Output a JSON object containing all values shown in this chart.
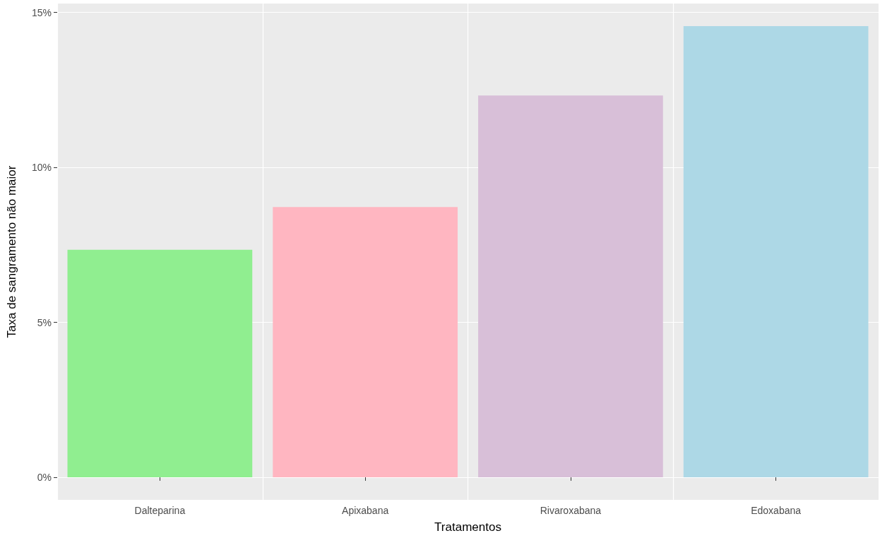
{
  "chart_data": {
    "type": "bar",
    "xlabel": "Tratamentos",
    "ylabel": "Taxa de sangramento não maior",
    "categories": [
      "Dalteparina",
      "Apixabana",
      "Rivaroxabana",
      "Edoxabana"
    ],
    "values": [
      7.34,
      8.72,
      12.32,
      14.56
    ],
    "colors": [
      "#90ee90",
      "#ffb6c1",
      "#d8bfd8",
      "#add8e6"
    ],
    "ylim": [
      -0.73,
      15.29
    ],
    "yticks": [
      {
        "value": 0,
        "label": "0%"
      },
      {
        "value": 5,
        "label": "5%"
      },
      {
        "value": 10,
        "label": "10%"
      },
      {
        "value": 15,
        "label": "15%"
      }
    ],
    "grid": true
  }
}
